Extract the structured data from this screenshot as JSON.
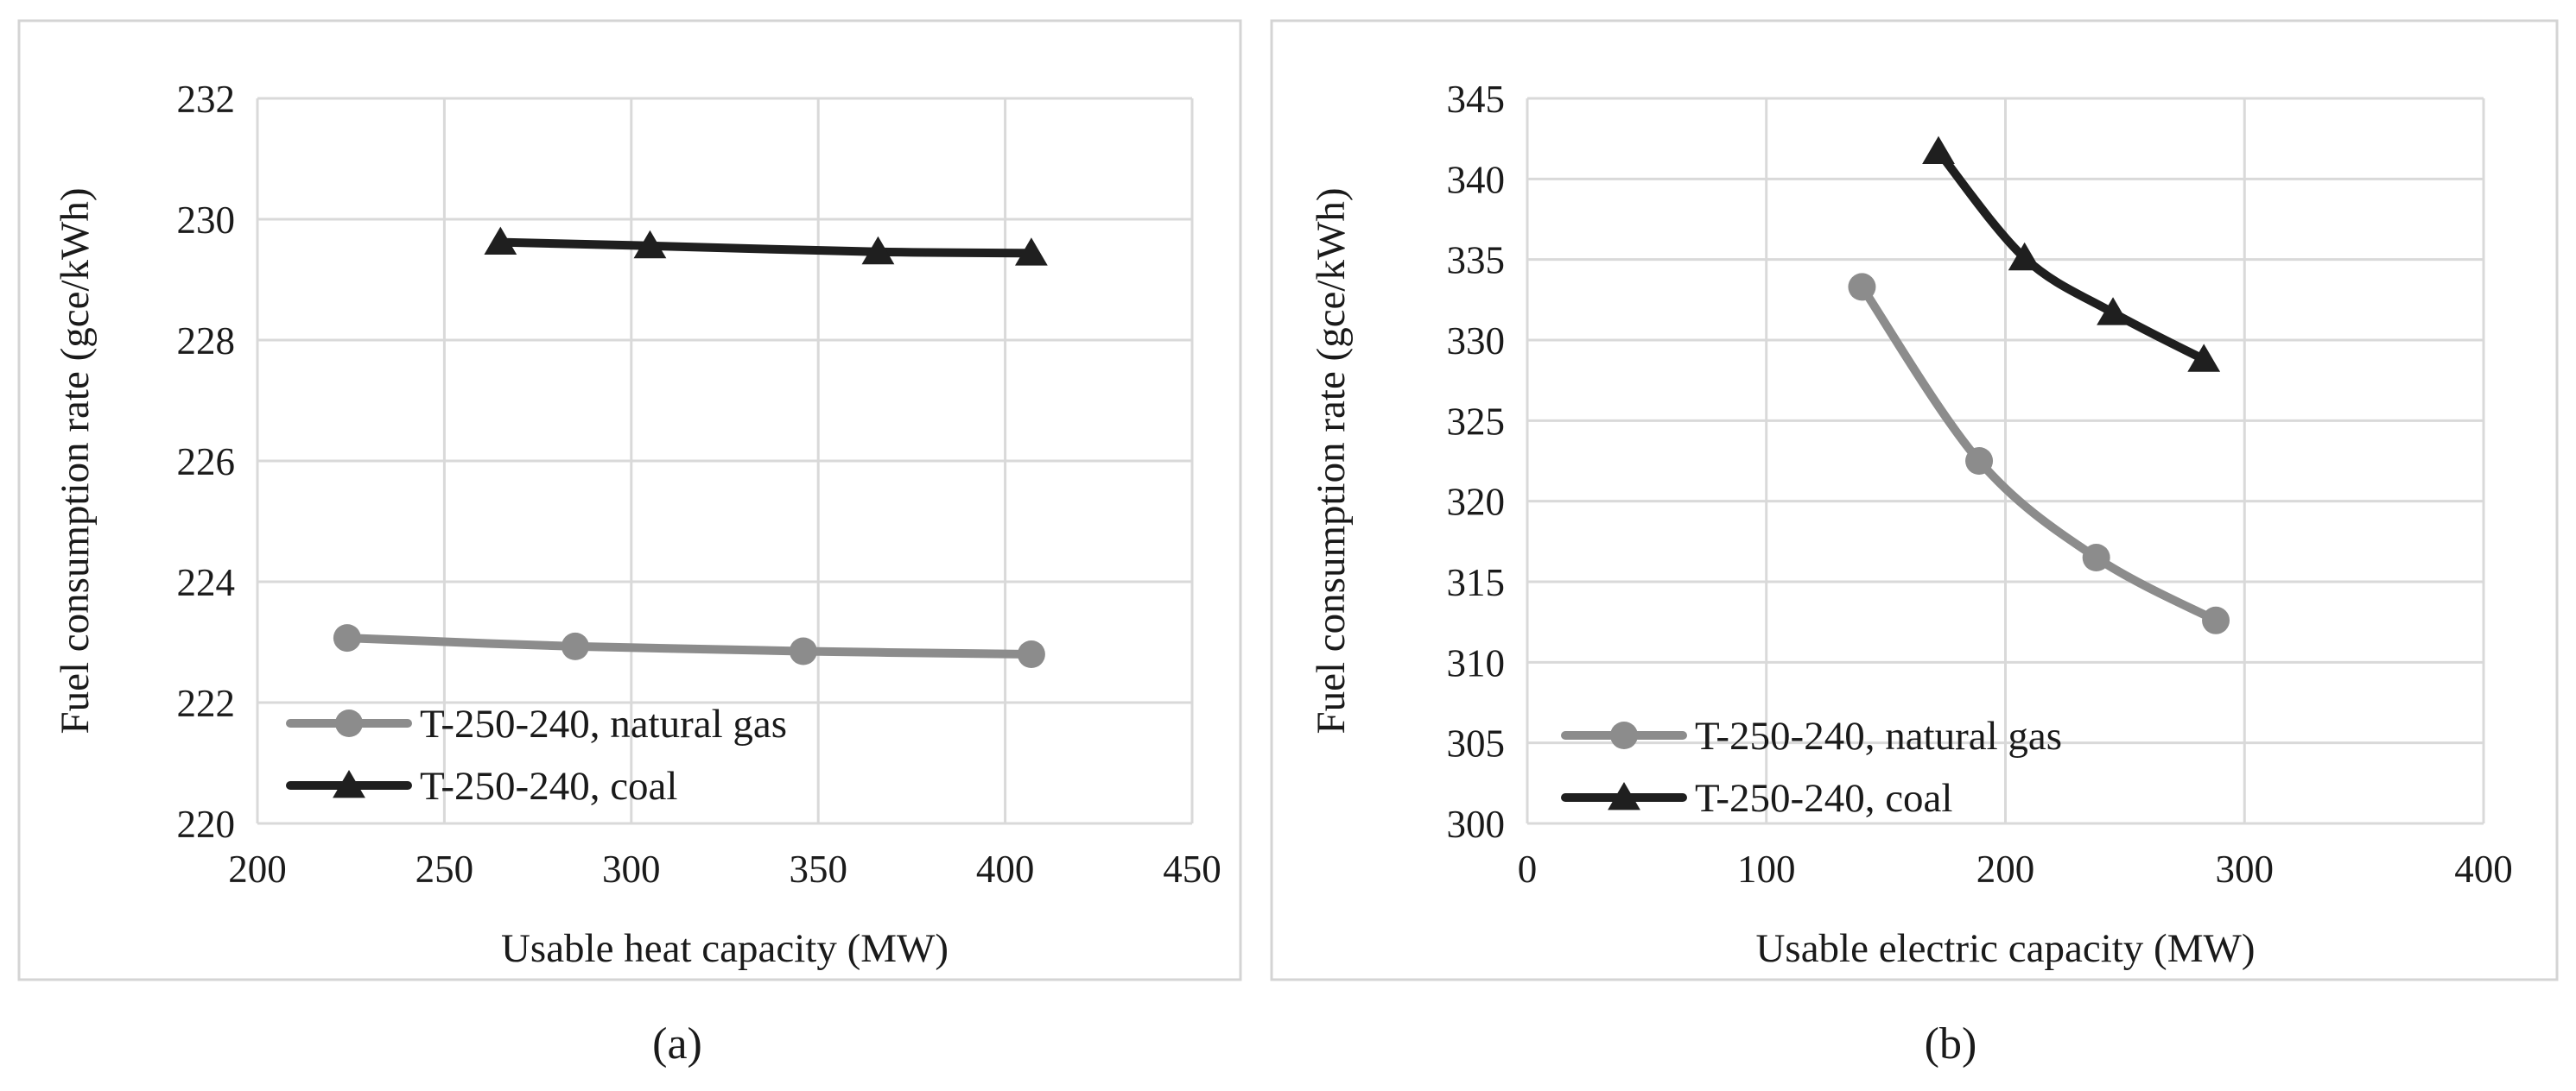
{
  "chart_data": [
    {
      "type": "line",
      "caption": "(a)",
      "xlabel": "Usable heat capacity (MW)",
      "ylabel": "Fuel consumption rate (gce/kWh)",
      "xlim": [
        200,
        450
      ],
      "ylim": [
        220,
        232
      ],
      "xticks": [
        200,
        250,
        300,
        350,
        400,
        450
      ],
      "yticks": [
        220,
        222,
        224,
        226,
        228,
        230,
        232
      ],
      "xtick_labels": [
        "200",
        "250",
        "300",
        "350",
        "400",
        "450"
      ],
      "ytick_labels": [
        "220",
        "222",
        "224",
        "226",
        "228",
        "230",
        "232"
      ],
      "grid": true,
      "legend_position": "bottom-left",
      "series": [
        {
          "name": "T-250-240, natural gas",
          "color": "#8c8c8c",
          "marker": "circle",
          "x": [
            224,
            285,
            346,
            407
          ],
          "y": [
            223.07,
            222.93,
            222.85,
            222.8
          ]
        },
        {
          "name": "T-250-240, coal",
          "color": "#1f1f1f",
          "marker": "triangle",
          "x": [
            265,
            305,
            366,
            407
          ],
          "y": [
            229.62,
            229.56,
            229.46,
            229.44
          ]
        }
      ]
    },
    {
      "type": "line",
      "caption": "(b)",
      "xlabel": "Usable electric capacity (MW)",
      "ylabel": "Fuel consumption rate  (gce/kWh)",
      "xlim": [
        0,
        400
      ],
      "ylim": [
        300,
        345
      ],
      "xticks": [
        0,
        100,
        200,
        300,
        400
      ],
      "yticks": [
        300,
        305,
        310,
        315,
        320,
        325,
        330,
        335,
        340,
        345
      ],
      "xtick_labels": [
        "0",
        "100",
        "200",
        "300",
        "400"
      ],
      "ytick_labels": [
        "300",
        "305",
        "310",
        "315",
        "320",
        "325",
        "330",
        "335",
        "340",
        "345"
      ],
      "grid": true,
      "legend_position": "bottom-left",
      "series": [
        {
          "name": "T-250-240, natural gas",
          "color": "#8c8c8c",
          "marker": "circle",
          "x": [
            140,
            189,
            238,
            288
          ],
          "y": [
            333.3,
            322.5,
            316.5,
            312.6
          ]
        },
        {
          "name": "T-250-240, coal",
          "color": "#1f1f1f",
          "marker": "triangle",
          "x": [
            172,
            208,
            245,
            283
          ],
          "y": [
            341.7,
            335.1,
            331.7,
            328.8
          ]
        }
      ]
    }
  ]
}
